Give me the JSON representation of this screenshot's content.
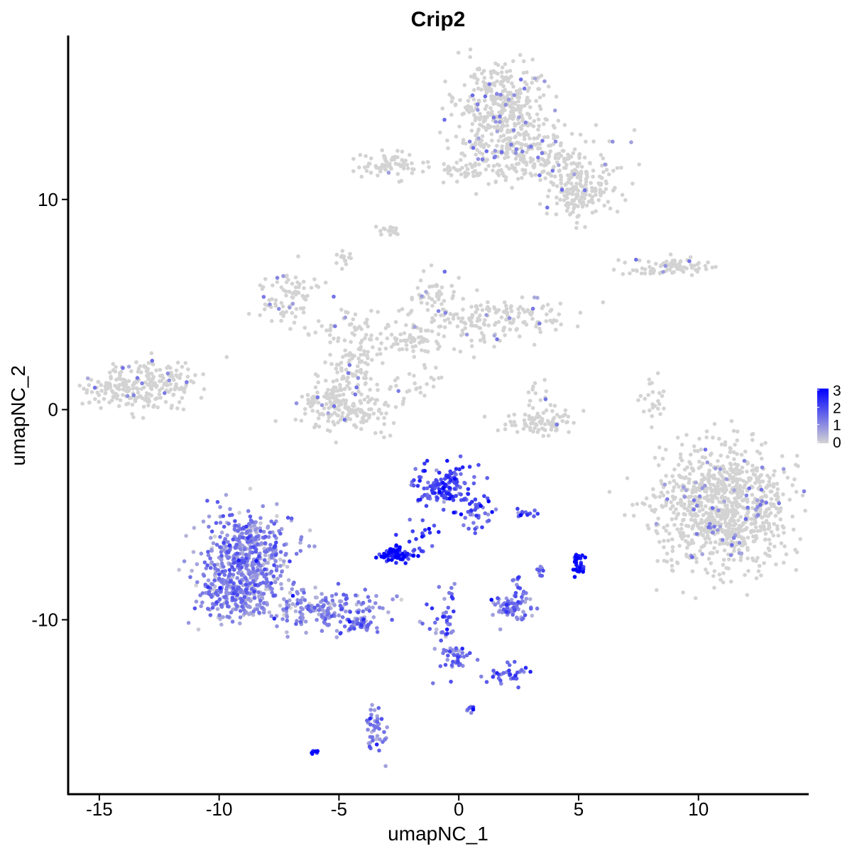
{
  "chart_data": {
    "type": "scatter",
    "title": "Crip2",
    "xlabel": "umapNC_1",
    "ylabel": "umapNC_2",
    "xlim": [
      -16.3,
      14.6
    ],
    "ylim": [
      -18.3,
      17.8
    ],
    "x_ticks": [
      -15,
      -10,
      -5,
      0,
      5,
      10
    ],
    "x_tick_labels": [
      "-15",
      "-10",
      "-5",
      "0",
      "5",
      "10"
    ],
    "y_ticks": [
      -10,
      0,
      10
    ],
    "y_tick_labels": [
      "-10",
      "0",
      "10"
    ],
    "grid": false,
    "legend": {
      "placement": "right",
      "type": "colorbar",
      "labels": [
        "3",
        "2",
        "1",
        "0"
      ],
      "values": [
        3,
        2,
        1,
        0
      ],
      "low_color": "#d3d3d3",
      "high_color": "#0000ff"
    },
    "colors": {
      "low": "#d3d3d3",
      "high": "#0000ff"
    },
    "expression_range": [
      0,
      3.2
    ],
    "clusters": [
      {
        "center": [
          1.8,
          14.2
        ],
        "spread": [
          1.0,
          1.2
        ],
        "n": 420,
        "expr": 0.08
      },
      {
        "center": [
          3.2,
          12.0
        ],
        "spread": [
          1.6,
          0.7
        ],
        "n": 220,
        "expr": 0.08
      },
      {
        "center": [
          5.0,
          10.3
        ],
        "spread": [
          0.7,
          0.6
        ],
        "n": 160,
        "expr": 0.05
      },
      {
        "center": [
          -2.8,
          11.7
        ],
        "spread": [
          0.7,
          0.3
        ],
        "n": 70,
        "expr": 0.02
      },
      {
        "center": [
          0.0,
          11.3
        ],
        "spread": [
          0.9,
          0.2
        ],
        "n": 40,
        "expr": 0.03
      },
      {
        "center": [
          -2.9,
          8.5
        ],
        "spread": [
          0.25,
          0.12
        ],
        "n": 18,
        "expr": 0.0
      },
      {
        "center": [
          -4.7,
          7.3
        ],
        "spread": [
          0.2,
          0.25
        ],
        "n": 14,
        "expr": 0.0
      },
      {
        "center": [
          8.8,
          6.8
        ],
        "spread": [
          1.1,
          0.2
        ],
        "n": 80,
        "expr": 0.1
      },
      {
        "center": [
          -7.1,
          5.3
        ],
        "spread": [
          0.6,
          0.6
        ],
        "n": 80,
        "expr": 0.1
      },
      {
        "center": [
          -4.2,
          3.9
        ],
        "spread": [
          1.4,
          0.5
        ],
        "n": 60,
        "expr": 0.06
      },
      {
        "center": [
          -1.2,
          5.4
        ],
        "spread": [
          0.5,
          0.6
        ],
        "n": 50,
        "expr": 0.05
      },
      {
        "center": [
          1.6,
          4.4
        ],
        "spread": [
          1.4,
          0.5
        ],
        "n": 160,
        "expr": 0.06
      },
      {
        "center": [
          -1.8,
          3.3
        ],
        "spread": [
          1.0,
          0.5
        ],
        "n": 60,
        "expr": 0.04
      },
      {
        "center": [
          -4.5,
          1.7
        ],
        "spread": [
          0.6,
          1.0
        ],
        "n": 110,
        "expr": 0.04
      },
      {
        "center": [
          -5.7,
          0.4
        ],
        "spread": [
          0.5,
          0.5
        ],
        "n": 60,
        "expr": 0.03
      },
      {
        "center": [
          -4.4,
          -0.1
        ],
        "spread": [
          1.0,
          0.5
        ],
        "n": 100,
        "expr": 0.03
      },
      {
        "center": [
          -1.8,
          1.3
        ],
        "spread": [
          0.7,
          0.5
        ],
        "n": 24,
        "expr": 0.03
      },
      {
        "center": [
          -13.5,
          1.0
        ],
        "spread": [
          1.0,
          0.55
        ],
        "n": 200,
        "expr": 0.06
      },
      {
        "center": [
          -12.1,
          1.6
        ],
        "spread": [
          0.6,
          0.5
        ],
        "n": 50,
        "expr": 0.05
      },
      {
        "center": [
          3.3,
          -0.6
        ],
        "spread": [
          0.8,
          0.35
        ],
        "n": 80,
        "expr": 0.04
      },
      {
        "center": [
          3.2,
          0.7
        ],
        "spread": [
          0.2,
          0.4
        ],
        "n": 14,
        "expr": 0.05
      },
      {
        "center": [
          8.1,
          0.4
        ],
        "spread": [
          0.25,
          0.55
        ],
        "n": 24,
        "expr": 0.0
      },
      {
        "center": [
          11.1,
          -4.6
        ],
        "spread": [
          1.4,
          1.4
        ],
        "n": 950,
        "expr": 0.06
      },
      {
        "center": [
          -0.6,
          -3.6
        ],
        "spread": [
          0.6,
          0.5
        ],
        "n": 140,
        "expr": 2.0
      },
      {
        "center": [
          0.7,
          -4.9
        ],
        "spread": [
          0.4,
          0.5
        ],
        "n": 40,
        "expr": 1.8
      },
      {
        "center": [
          -1.6,
          -6.2
        ],
        "spread": [
          0.3,
          0.5
        ],
        "n": 22,
        "expr": 2.2
      },
      {
        "center": [
          -2.6,
          -6.9
        ],
        "spread": [
          0.3,
          0.17
        ],
        "n": 90,
        "expr": 2.5
      },
      {
        "center": [
          -8.8,
          -6.6
        ],
        "spread": [
          0.9,
          0.9
        ],
        "n": 380,
        "expr": 1.1
      },
      {
        "center": [
          -9.3,
          -8.6
        ],
        "spread": [
          0.8,
          0.7
        ],
        "n": 300,
        "expr": 1.1
      },
      {
        "center": [
          -6.0,
          -9.5
        ],
        "spread": [
          1.4,
          0.5
        ],
        "n": 190,
        "expr": 1.1
      },
      {
        "center": [
          -4.3,
          -10.3
        ],
        "spread": [
          0.4,
          0.2
        ],
        "n": 40,
        "expr": 1.3
      },
      {
        "center": [
          2.3,
          -9.5
        ],
        "spread": [
          0.45,
          0.3
        ],
        "n": 65,
        "expr": 1.3
      },
      {
        "center": [
          2.5,
          -8.5
        ],
        "spread": [
          0.15,
          0.3
        ],
        "n": 16,
        "expr": 1.4
      },
      {
        "center": [
          2.8,
          -5.0
        ],
        "spread": [
          0.3,
          0.12
        ],
        "n": 14,
        "expr": 1.8
      },
      {
        "center": [
          5.0,
          -7.4
        ],
        "spread": [
          0.12,
          0.3
        ],
        "n": 30,
        "expr": 2.8
      },
      {
        "center": [
          3.4,
          -7.7
        ],
        "spread": [
          0.12,
          0.2
        ],
        "n": 10,
        "expr": 1.5
      },
      {
        "center": [
          -0.6,
          -10.4
        ],
        "spread": [
          0.35,
          1.0
        ],
        "n": 45,
        "expr": 1.4
      },
      {
        "center": [
          -0.1,
          -11.8
        ],
        "spread": [
          0.3,
          0.3
        ],
        "n": 35,
        "expr": 1.3
      },
      {
        "center": [
          2.2,
          -12.6
        ],
        "spread": [
          0.5,
          0.25
        ],
        "n": 35,
        "expr": 1.8
      },
      {
        "center": [
          -3.5,
          -15.3
        ],
        "spread": [
          0.25,
          0.6
        ],
        "n": 45,
        "expr": 1.4
      },
      {
        "center": [
          0.5,
          -14.2
        ],
        "spread": [
          0.1,
          0.12
        ],
        "n": 8,
        "expr": 1.5
      },
      {
        "center": [
          -6.0,
          -16.3
        ],
        "spread": [
          0.08,
          0.05
        ],
        "n": 8,
        "expr": 3.2
      }
    ]
  }
}
